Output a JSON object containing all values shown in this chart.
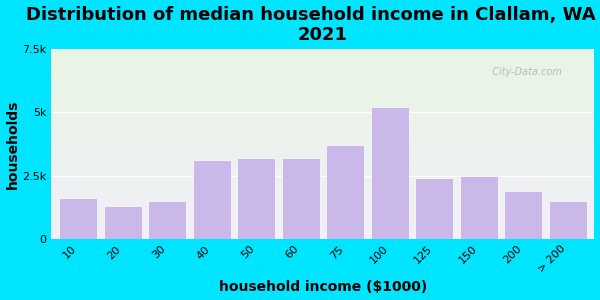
{
  "title": "Distribution of median household income in Clallam, WA in\n2021",
  "xlabel": "household income ($1000)",
  "ylabel": "households",
  "categories": [
    "10",
    "20",
    "30",
    "40",
    "50",
    "60",
    "75",
    "100",
    "125",
    "150",
    "200",
    "> 200"
  ],
  "bar_values": [
    1600,
    1300,
    1500,
    3100,
    3200,
    3200,
    3700,
    5200,
    2400,
    2500,
    1900,
    1500
  ],
  "bar_color": "#c9b8e8",
  "bar_edge_color": "#ffffff",
  "bg_outer": "#00e5ff",
  "bg_plot_top": "#e8f5e3",
  "bg_plot_bottom": "#f0f0f8",
  "ylim": [
    0,
    7500
  ],
  "yticks": [
    0,
    2500,
    5000,
    7500
  ],
  "ytick_labels": [
    "0",
    "2.5k",
    "5k",
    "7.5k"
  ],
  "title_fontsize": 13,
  "label_fontsize": 10,
  "tick_fontsize": 8,
  "watermark": "  City-Data.com"
}
